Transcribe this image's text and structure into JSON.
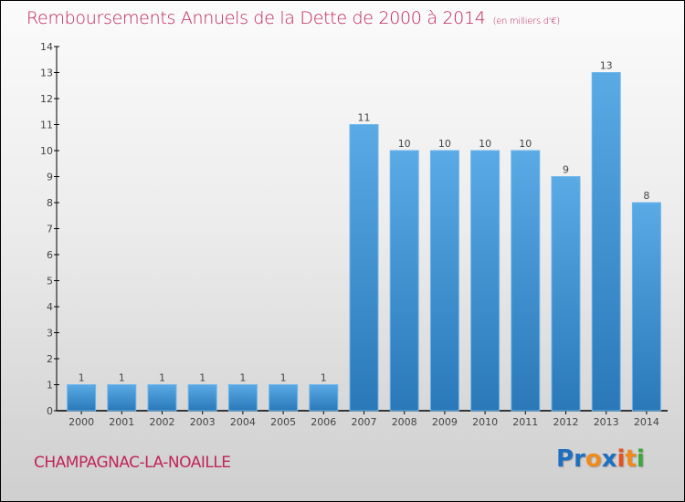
{
  "header": {
    "title": "Remboursements Annuels de la Dette de 2000 à 2014",
    "unit": "(en milliers d'€)"
  },
  "footer": {
    "commune": "CHAMPAGNAC-LA-NOAILLE",
    "logo_letters": [
      {
        "char": "P",
        "color": "#1e6fc0"
      },
      {
        "char": "r",
        "color": "#1e6fc0"
      },
      {
        "char": "o",
        "color": "#f08a1c"
      },
      {
        "char": "x",
        "color": "#1e6fc0"
      },
      {
        "char": "i",
        "color": "#e8501c"
      },
      {
        "char": "t",
        "color": "#f08a1c"
      },
      {
        "char": "i",
        "color": "#3aa83a"
      }
    ]
  },
  "colors": {
    "bar_top": "#5aaae6",
    "bar_bottom": "#2a78b8",
    "title": "#c0245a"
  },
  "chart_data": {
    "type": "bar",
    "title": "Remboursements Annuels de la Dette de 2000 à 2014",
    "subtitle": "(en milliers d'€)",
    "xlabel": "",
    "ylabel": "",
    "categories": [
      "2000",
      "2001",
      "2002",
      "2003",
      "2004",
      "2005",
      "2006",
      "2007",
      "2008",
      "2009",
      "2010",
      "2011",
      "2012",
      "2013",
      "2014"
    ],
    "values": [
      1,
      1,
      1,
      1,
      1,
      1,
      1,
      11,
      10,
      10,
      10,
      10,
      9,
      13,
      8
    ],
    "ylim": [
      0,
      14
    ],
    "yticks": [
      0,
      1,
      2,
      3,
      4,
      5,
      6,
      7,
      8,
      9,
      10,
      11,
      12,
      13,
      14
    ],
    "grid": false,
    "legend": "none",
    "data_labels": true
  }
}
